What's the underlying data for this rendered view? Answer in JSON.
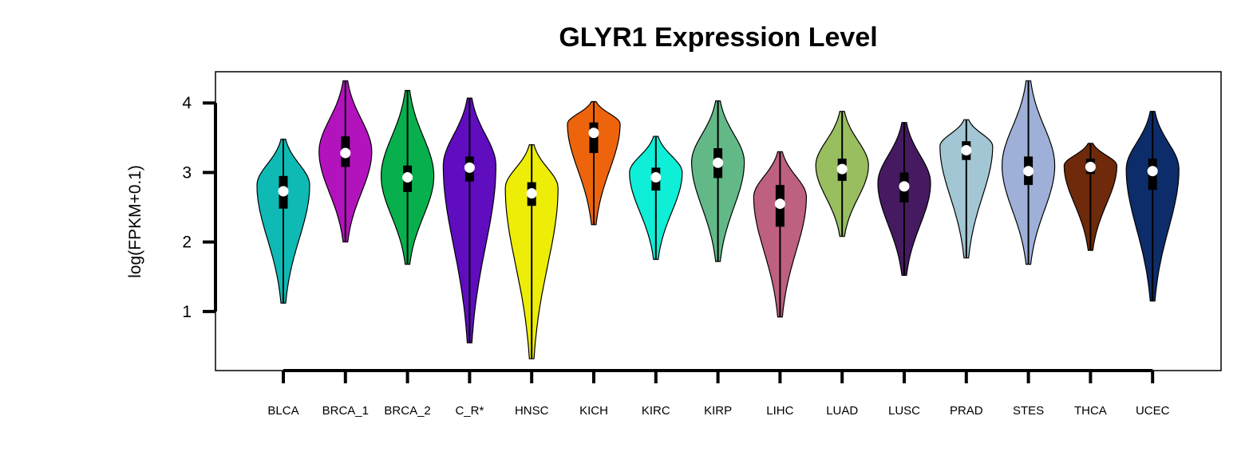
{
  "chart_data": {
    "type": "violin",
    "title": "GLYR1 Expression Level",
    "xlabel": "",
    "ylabel": "log(FPKM+0.1)",
    "ylim": [
      0.15,
      4.45
    ],
    "yticks": [
      1,
      2,
      3,
      4
    ],
    "grid": false,
    "legend": "none",
    "categories": [
      "BLCA",
      "BRCA_1",
      "BRCA_2",
      "C_R*",
      "HNSC",
      "KICH",
      "KIRC",
      "KIRP",
      "LIHC",
      "LUAD",
      "LUSC",
      "PRAD",
      "STES",
      "THCA",
      "UCEC"
    ],
    "series": [
      {
        "category": "BLCA",
        "color": "#0fbab5",
        "min": 1.12,
        "q1": 2.48,
        "median": 2.73,
        "q3": 2.95,
        "max": 3.48,
        "mode": 2.82
      },
      {
        "category": "BRCA_1",
        "color": "#b313bd",
        "min": 2.0,
        "q1": 3.08,
        "median": 3.28,
        "q3": 3.52,
        "max": 4.32,
        "mode": 3.3
      },
      {
        "category": "BRCA_2",
        "color": "#08b04d",
        "min": 1.68,
        "q1": 2.72,
        "median": 2.93,
        "q3": 3.1,
        "max": 4.18,
        "mode": 2.95
      },
      {
        "category": "C_R*",
        "color": "#5f0dbf",
        "min": 0.55,
        "q1": 2.87,
        "median": 3.07,
        "q3": 3.23,
        "max": 4.07,
        "mode": 3.1
      },
      {
        "category": "HNSC",
        "color": "#eded08",
        "min": 0.32,
        "q1": 2.52,
        "median": 2.7,
        "q3": 2.86,
        "max": 3.4,
        "mode": 2.78
      },
      {
        "category": "KICH",
        "color": "#ee640c",
        "min": 2.25,
        "q1": 3.28,
        "median": 3.57,
        "q3": 3.72,
        "max": 4.02,
        "mode": 3.7
      },
      {
        "category": "KIRC",
        "color": "#0feed7",
        "min": 1.75,
        "q1": 2.74,
        "median": 2.93,
        "q3": 3.07,
        "max": 3.52,
        "mode": 3.0
      },
      {
        "category": "KIRP",
        "color": "#62b987",
        "min": 1.72,
        "q1": 2.92,
        "median": 3.14,
        "q3": 3.35,
        "max": 4.03,
        "mode": 3.15
      },
      {
        "category": "LIHC",
        "color": "#be6080",
        "min": 0.92,
        "q1": 2.22,
        "median": 2.55,
        "q3": 2.82,
        "max": 3.3,
        "mode": 2.65
      },
      {
        "category": "LUAD",
        "color": "#99be60",
        "min": 2.08,
        "q1": 2.88,
        "median": 3.05,
        "q3": 3.2,
        "max": 3.88,
        "mode": 3.1
      },
      {
        "category": "LUSC",
        "color": "#451a60",
        "min": 1.52,
        "q1": 2.57,
        "median": 2.8,
        "q3": 3.0,
        "max": 3.72,
        "mode": 2.85
      },
      {
        "category": "PRAD",
        "color": "#a2c6d3",
        "min": 1.77,
        "q1": 3.18,
        "median": 3.32,
        "q3": 3.45,
        "max": 3.76,
        "mode": 3.38
      },
      {
        "category": "STES",
        "color": "#9fb0d8",
        "min": 1.68,
        "q1": 2.82,
        "median": 3.02,
        "q3": 3.23,
        "max": 4.32,
        "mode": 3.1
      },
      {
        "category": "THCA",
        "color": "#6e2a0a",
        "min": 1.88,
        "q1": 2.98,
        "median": 3.08,
        "q3": 3.2,
        "max": 3.42,
        "mode": 3.1
      },
      {
        "category": "UCEC",
        "color": "#0d2c6a",
        "min": 1.15,
        "q1": 2.75,
        "median": 3.02,
        "q3": 3.2,
        "max": 3.88,
        "mode": 3.05
      }
    ]
  }
}
